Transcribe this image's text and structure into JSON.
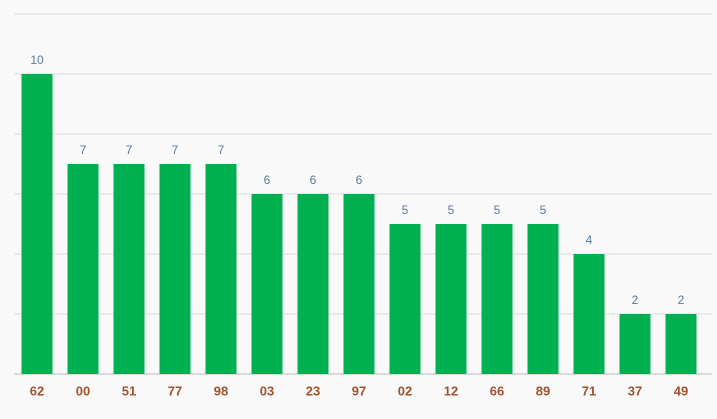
{
  "chart_data": {
    "type": "bar",
    "categories": [
      "62",
      "00",
      "51",
      "77",
      "98",
      "03",
      "23",
      "97",
      "02",
      "12",
      "66",
      "89",
      "71",
      "37",
      "49"
    ],
    "values": [
      10,
      7,
      7,
      7,
      7,
      6,
      6,
      6,
      5,
      5,
      5,
      5,
      4,
      2,
      2
    ],
    "color": "#00b050",
    "ylim": [
      0,
      12
    ],
    "yticks": [
      0,
      2,
      4,
      6,
      8,
      10,
      12
    ],
    "grid": true
  }
}
